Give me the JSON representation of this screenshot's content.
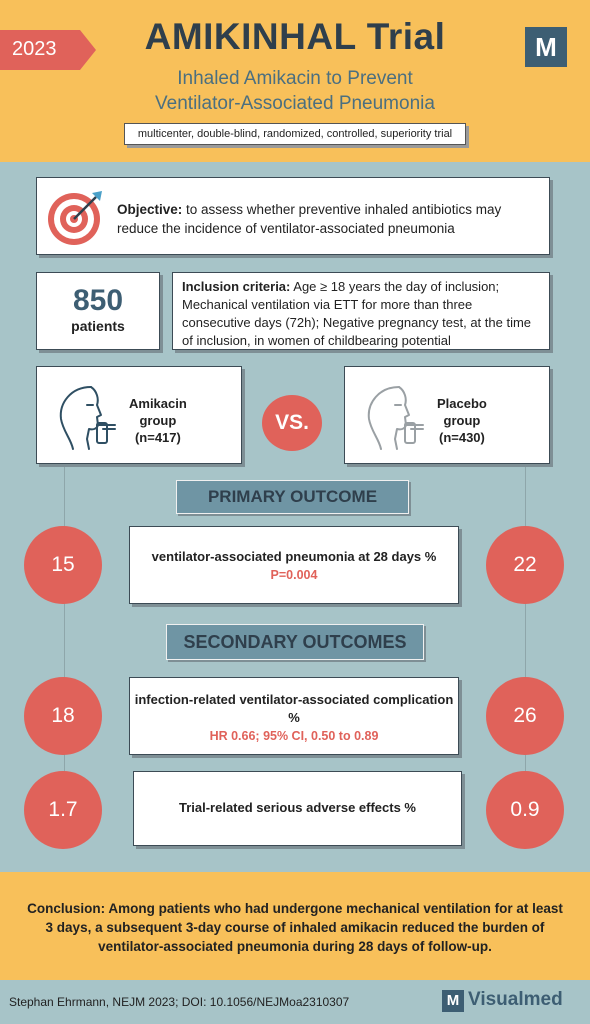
{
  "header": {
    "year": "2023",
    "title": "AMIKINHAL Trial",
    "subtitle_line1": "Inhaled Amikacin to Prevent",
    "subtitle_line2": "Ventilator-Associated Pneumonia",
    "design": "multicenter, double-blind, randomized, controlled, superiority trial",
    "logo_letter": "M"
  },
  "objective": {
    "label": "Objective:",
    "text": " to assess whether preventive inhaled antibiotics may reduce the incidence of ventilator-associated pneumonia",
    "icon": "target-icon"
  },
  "patients": {
    "count": "850",
    "label": "patients"
  },
  "inclusion": {
    "label": "Inclusion criteria:",
    "text": " Age ≥ 18 years the day of inclusion; Mechanical ventilation via ETT for more than three consecutive days (72h); Negative pregnancy test, at the time of inclusion, in women of childbearing potential"
  },
  "groups": {
    "amikacin": {
      "line1": "Amikacin",
      "line2": "group",
      "line3": "(n=417)"
    },
    "placebo": {
      "line1": "Placebo",
      "line2": "group",
      "line3": "(n=430)"
    },
    "vs": "VS."
  },
  "primary": {
    "title": "PRIMARY OUTCOME",
    "outcome": "ventilator-associated pneumonia at 28 days %",
    "stat": "P=0.004",
    "amikacin_value": "15",
    "placebo_value": "22"
  },
  "secondary": {
    "title": "SECONDARY OUTCOMES",
    "items": [
      {
        "outcome": "infection-related ventilator-associated complication %",
        "stat": "HR 0.66; 95% CI, 0.50 to 0.89",
        "amikacin_value": "18",
        "placebo_value": "26"
      },
      {
        "outcome": "Trial-related serious adverse effects %",
        "stat": "",
        "amikacin_value": "1.7",
        "placebo_value": "0.9"
      }
    ]
  },
  "conclusion": {
    "label": "Conclusion:",
    "text": " Among patients who had undergone mechanical ventilation for at least 3 days, a subsequent 3-day course of inhaled amikacin reduced the burden of ventilator-associated pneumonia during 28 days of follow-up."
  },
  "footer": {
    "citation": "Stephan Ehrmann, NEJM 2023; DOI: 10.1056/NEJMoa2310307",
    "brand_letter": "M",
    "brand": "Visualmed"
  },
  "colors": {
    "accent_red": "#e0625a",
    "header_yellow": "#f8c05a",
    "background": "#a7c4c8",
    "brand_blue": "#3d5e73"
  }
}
